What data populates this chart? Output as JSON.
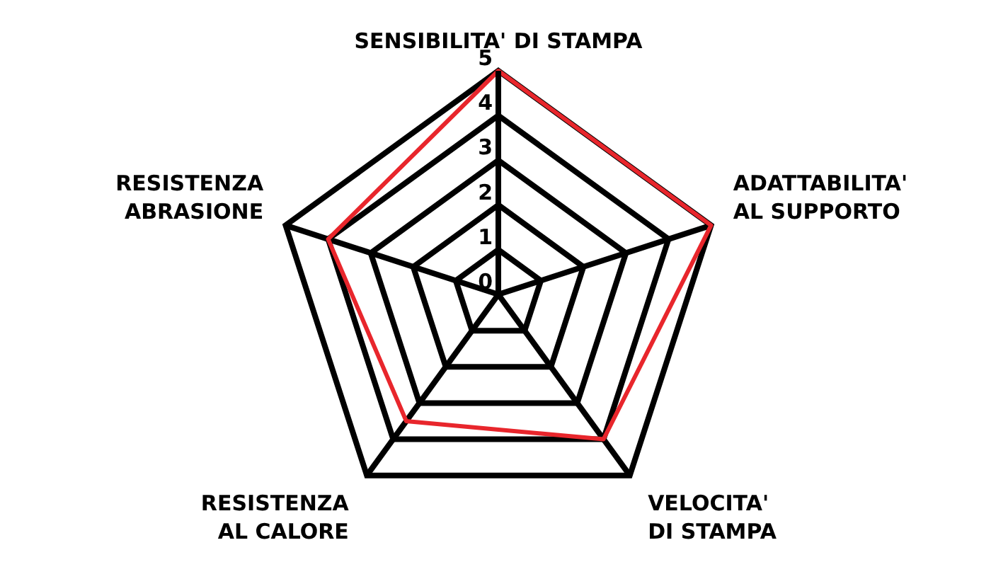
{
  "chart_data": {
    "type": "radar",
    "categories": [
      "SENSIBILITA' DI STAMPA",
      "ADATTABILITA' AL SUPPORTO",
      "VELOCITA' DI STAMPA",
      "RESISTENZA AL CALORE",
      "RESISTENZA ABRASIONE"
    ],
    "series": [
      {
        "color": "#e8262c",
        "values": [
          5,
          5,
          4,
          3.5,
          4
        ]
      }
    ],
    "ylim": [
      0,
      5
    ],
    "yticks": [
      0,
      1,
      2,
      3,
      4,
      5
    ],
    "grid": true,
    "legend": false,
    "marker": "none"
  }
}
